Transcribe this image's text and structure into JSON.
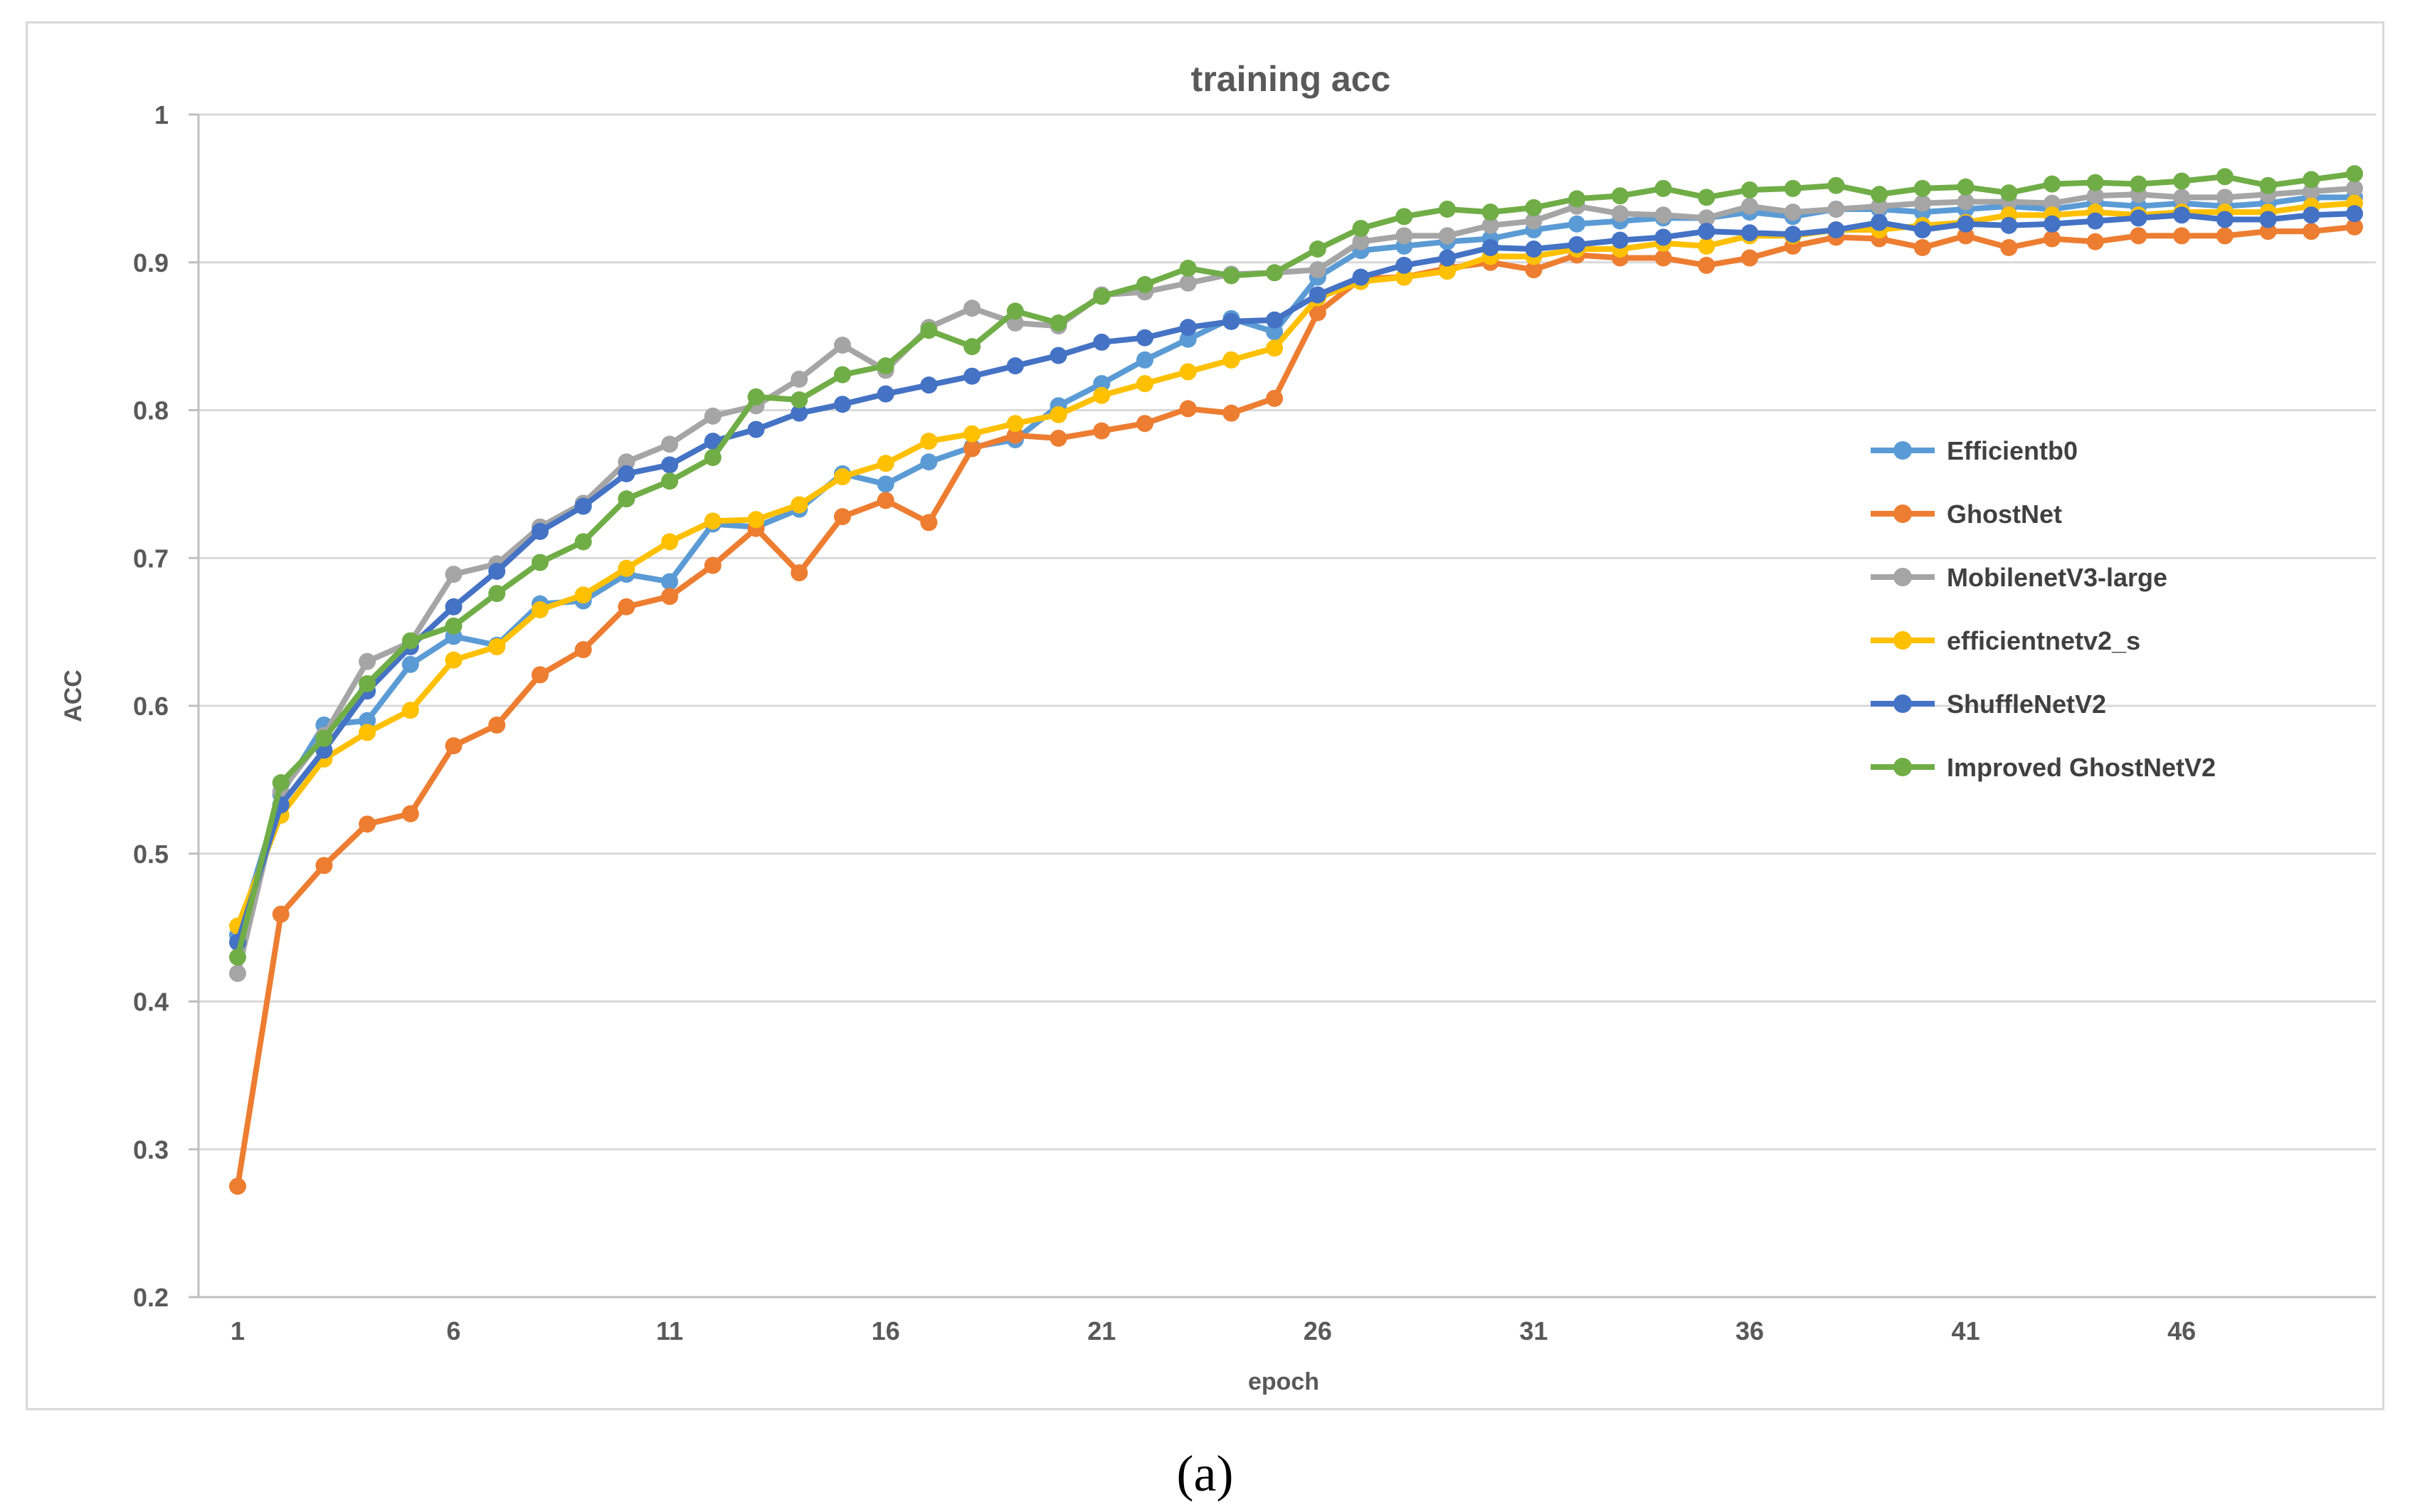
{
  "chart_data": {
    "type": "line",
    "title": "training acc",
    "xlabel": "epoch",
    "ylabel": "ACC",
    "ylim": [
      0.2,
      1.0
    ],
    "yticks": [
      "0.2",
      "0.3",
      "0.4",
      "0.5",
      "0.6",
      "0.7",
      "0.8",
      "0.9",
      "1"
    ],
    "xtick_labels": [
      "1",
      "6",
      "11",
      "16",
      "21",
      "26",
      "31",
      "36",
      "41",
      "46"
    ],
    "grid": true,
    "legend_position": "right",
    "x": [
      1,
      2,
      3,
      4,
      5,
      6,
      7,
      8,
      9,
      10,
      11,
      12,
      13,
      14,
      15,
      16,
      17,
      18,
      19,
      20,
      21,
      22,
      23,
      24,
      25,
      26,
      27,
      28,
      29,
      30,
      31,
      32,
      33,
      34,
      35,
      36,
      37,
      38,
      39,
      40,
      41,
      42,
      43,
      44,
      45,
      46,
      47,
      48,
      49,
      50
    ],
    "series": [
      {
        "name": "Efficientb0",
        "color": "#5B9BD5",
        "values": [
          0.445,
          0.54,
          0.587,
          0.59,
          0.628,
          0.647,
          0.641,
          0.669,
          0.671,
          0.689,
          0.684,
          0.723,
          0.721,
          0.733,
          0.757,
          0.75,
          0.765,
          0.775,
          0.78,
          0.803,
          0.818,
          0.834,
          0.848,
          0.862,
          0.853,
          0.89,
          0.908,
          0.911,
          0.914,
          0.916,
          0.922,
          0.926,
          0.928,
          0.93,
          0.93,
          0.934,
          0.931,
          0.936,
          0.936,
          0.934,
          0.936,
          0.938,
          0.936,
          0.94,
          0.938,
          0.94,
          0.938,
          0.94,
          0.944,
          0.944
        ]
      },
      {
        "name": "GhostNet",
        "color": "#ED7D31",
        "values": [
          0.275,
          0.459,
          0.492,
          0.52,
          0.527,
          0.573,
          0.587,
          0.621,
          0.638,
          0.667,
          0.674,
          0.695,
          0.72,
          0.69,
          0.728,
          0.739,
          0.724,
          0.774,
          0.783,
          0.781,
          0.786,
          0.791,
          0.801,
          0.798,
          0.808,
          0.866,
          0.889,
          0.89,
          0.896,
          0.9,
          0.895,
          0.905,
          0.903,
          0.903,
          0.898,
          0.903,
          0.911,
          0.917,
          0.916,
          0.91,
          0.918,
          0.91,
          0.916,
          0.914,
          0.918,
          0.918,
          0.918,
          0.921,
          0.921,
          0.924
        ]
      },
      {
        "name": "MobilenetV3-large",
        "color": "#A5A5A5",
        "values": [
          0.419,
          0.542,
          0.58,
          0.63,
          0.643,
          0.689,
          0.696,
          0.721,
          0.737,
          0.765,
          0.777,
          0.796,
          0.803,
          0.821,
          0.844,
          0.827,
          0.856,
          0.869,
          0.859,
          0.857,
          0.878,
          0.88,
          0.886,
          0.892,
          0.893,
          0.895,
          0.914,
          0.918,
          0.918,
          0.925,
          0.928,
          0.938,
          0.933,
          0.932,
          0.93,
          0.938,
          0.934,
          0.936,
          0.938,
          0.94,
          0.941,
          0.941,
          0.94,
          0.945,
          0.946,
          0.944,
          0.944,
          0.946,
          0.948,
          0.95
        ]
      },
      {
        "name": "efficientnetv2_s",
        "color": "#FFC000",
        "values": [
          0.451,
          0.526,
          0.564,
          0.582,
          0.597,
          0.631,
          0.64,
          0.665,
          0.675,
          0.693,
          0.711,
          0.725,
          0.726,
          0.736,
          0.755,
          0.764,
          0.779,
          0.784,
          0.791,
          0.797,
          0.81,
          0.818,
          0.826,
          0.834,
          0.842,
          0.876,
          0.887,
          0.89,
          0.894,
          0.904,
          0.904,
          0.909,
          0.909,
          0.913,
          0.911,
          0.918,
          0.918,
          0.922,
          0.922,
          0.925,
          0.927,
          0.932,
          0.932,
          0.934,
          0.932,
          0.934,
          0.934,
          0.934,
          0.938,
          0.94
        ]
      },
      {
        "name": "ShuffleNetV2",
        "color": "#4472C4",
        "values": [
          0.44,
          0.533,
          0.57,
          0.61,
          0.64,
          0.667,
          0.691,
          0.718,
          0.735,
          0.757,
          0.763,
          0.779,
          0.787,
          0.798,
          0.804,
          0.811,
          0.817,
          0.823,
          0.83,
          0.837,
          0.846,
          0.849,
          0.856,
          0.86,
          0.861,
          0.878,
          0.89,
          0.898,
          0.903,
          0.91,
          0.909,
          0.912,
          0.915,
          0.917,
          0.921,
          0.92,
          0.919,
          0.922,
          0.927,
          0.922,
          0.926,
          0.925,
          0.926,
          0.928,
          0.93,
          0.932,
          0.929,
          0.929,
          0.932,
          0.933
        ]
      },
      {
        "name": "Improved GhostNetV2",
        "color": "#70AD47",
        "values": [
          0.43,
          0.548,
          0.578,
          0.615,
          0.644,
          0.654,
          0.676,
          0.697,
          0.711,
          0.74,
          0.752,
          0.768,
          0.809,
          0.807,
          0.824,
          0.83,
          0.854,
          0.843,
          0.867,
          0.859,
          0.877,
          0.885,
          0.896,
          0.891,
          0.893,
          0.909,
          0.923,
          0.931,
          0.936,
          0.934,
          0.937,
          0.943,
          0.945,
          0.95,
          0.944,
          0.949,
          0.95,
          0.952,
          0.946,
          0.95,
          0.951,
          0.947,
          0.953,
          0.954,
          0.953,
          0.955,
          0.958,
          0.952,
          0.956,
          0.96
        ]
      }
    ]
  },
  "caption": "(a)"
}
